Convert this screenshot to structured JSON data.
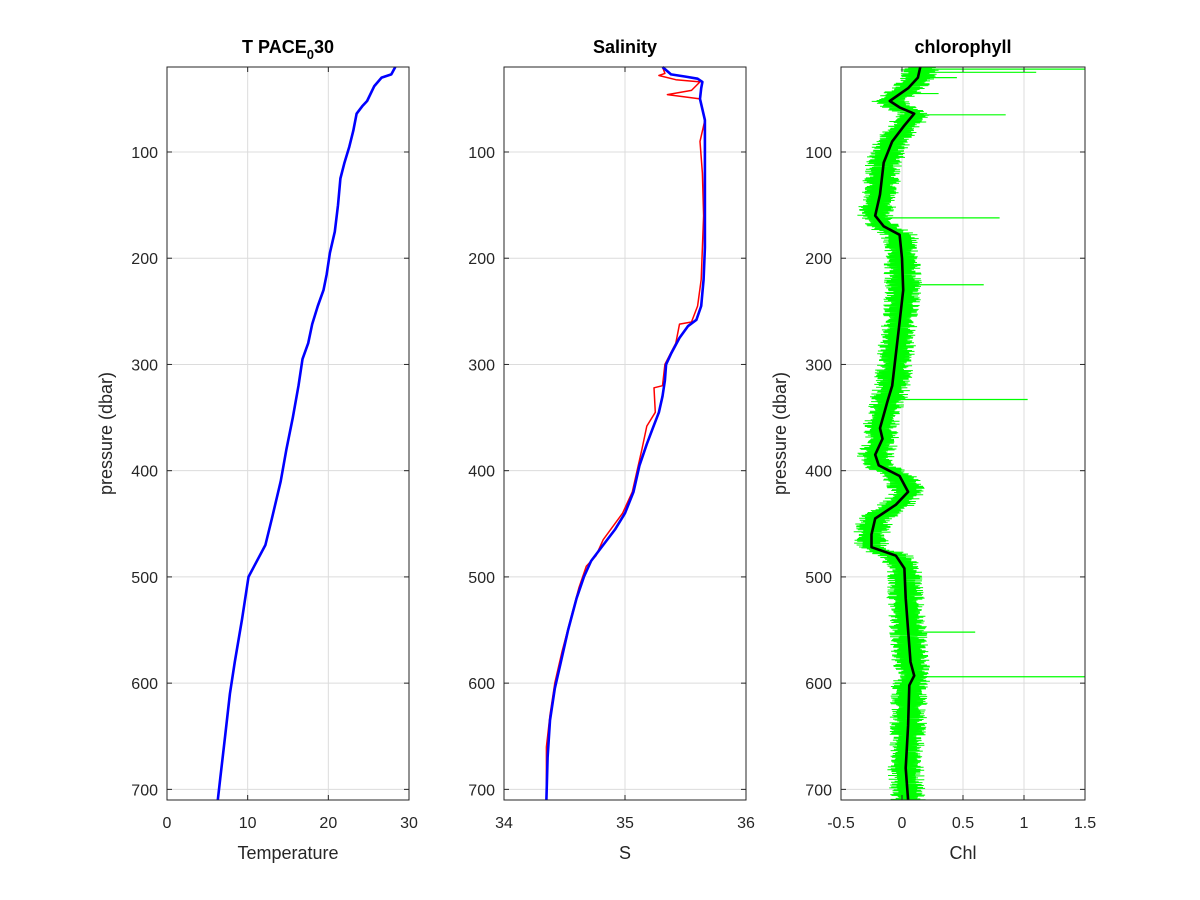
{
  "chart_data": [
    {
      "type": "line",
      "title": "T PACE",
      "title_subscript": "0",
      "title_suffix": "30",
      "xlabel": "Temperature",
      "ylabel": "pressure (dbar)",
      "xlim": [
        0,
        30
      ],
      "ylim": [
        20,
        710
      ],
      "y_reversed": true,
      "grid": true,
      "xticks": [
        0,
        10,
        20,
        30
      ],
      "yticks": [
        100,
        200,
        300,
        400,
        500,
        600,
        700
      ],
      "series": [
        {
          "color": "#0000ff",
          "points": [
            [
              28.3,
              20
            ],
            [
              27.8,
              27
            ],
            [
              26.6,
              30
            ],
            [
              25.7,
              38
            ],
            [
              24.8,
              52
            ],
            [
              24.2,
              57
            ],
            [
              23.5,
              64
            ],
            [
              23.1,
              80
            ],
            [
              22.6,
              95
            ],
            [
              22.0,
              110
            ],
            [
              21.5,
              125
            ],
            [
              21.2,
              150
            ],
            [
              20.8,
              175
            ],
            [
              20.2,
              195
            ],
            [
              19.8,
              215
            ],
            [
              19.4,
              230
            ],
            [
              18.7,
              245
            ],
            [
              18.0,
              262
            ],
            [
              17.5,
              280
            ],
            [
              16.8,
              295
            ],
            [
              16.3,
              320
            ],
            [
              15.6,
              350
            ],
            [
              14.8,
              380
            ],
            [
              14.1,
              410
            ],
            [
              13.0,
              445
            ],
            [
              12.2,
              470
            ],
            [
              10.8,
              490
            ],
            [
              10.1,
              500
            ],
            [
              9.3,
              540
            ],
            [
              8.4,
              580
            ],
            [
              7.8,
              610
            ],
            [
              7.2,
              650
            ],
            [
              6.6,
              690
            ],
            [
              6.3,
              710
            ]
          ]
        }
      ]
    },
    {
      "type": "line",
      "title": "Salinity",
      "xlabel": "S",
      "ylabel": "",
      "xlim": [
        34,
        36
      ],
      "ylim": [
        20,
        710
      ],
      "y_reversed": true,
      "grid": true,
      "xticks": [
        34,
        35,
        36
      ],
      "series": [
        {
          "color": "#ff0000",
          "points": [
            [
              35.31,
              20
            ],
            [
              35.33,
              26
            ],
            [
              35.28,
              28
            ],
            [
              35.42,
              32
            ],
            [
              35.62,
              34
            ],
            [
              35.55,
              42
            ],
            [
              35.35,
              46
            ],
            [
              35.62,
              50
            ],
            [
              35.66,
              70
            ],
            [
              35.62,
              90
            ],
            [
              35.64,
              120
            ],
            [
              35.65,
              160
            ],
            [
              35.64,
              190
            ],
            [
              35.63,
              220
            ],
            [
              35.6,
              245
            ],
            [
              35.55,
              260
            ],
            [
              35.45,
              262
            ],
            [
              35.42,
              280
            ],
            [
              35.33,
              300
            ],
            [
              35.31,
              320
            ],
            [
              35.24,
              322
            ],
            [
              35.25,
              345
            ],
            [
              35.18,
              358
            ],
            [
              35.14,
              380
            ],
            [
              35.06,
              420
            ],
            [
              34.98,
              440
            ],
            [
              34.82,
              465
            ],
            [
              34.76,
              480
            ],
            [
              34.68,
              490
            ],
            [
              34.62,
              510
            ],
            [
              34.55,
              540
            ],
            [
              34.48,
              570
            ],
            [
              34.42,
              600
            ],
            [
              34.38,
              630
            ],
            [
              34.35,
              660
            ],
            [
              34.35,
              710
            ]
          ]
        },
        {
          "color": "#0000ff",
          "points": [
            [
              35.31,
              20
            ],
            [
              35.38,
              27
            ],
            [
              35.5,
              29
            ],
            [
              35.6,
              31
            ],
            [
              35.64,
              34
            ],
            [
              35.63,
              40
            ],
            [
              35.62,
              50
            ],
            [
              35.66,
              70
            ],
            [
              35.66,
              95
            ],
            [
              35.66,
              125
            ],
            [
              35.66,
              160
            ],
            [
              35.66,
              190
            ],
            [
              35.65,
              220
            ],
            [
              35.63,
              245
            ],
            [
              35.59,
              258
            ],
            [
              35.52,
              264
            ],
            [
              35.45,
              275
            ],
            [
              35.38,
              290
            ],
            [
              35.34,
              300
            ],
            [
              35.33,
              315
            ],
            [
              35.31,
              330
            ],
            [
              35.28,
              345
            ],
            [
              35.23,
              360
            ],
            [
              35.18,
              375
            ],
            [
              35.12,
              395
            ],
            [
              35.07,
              420
            ],
            [
              35.0,
              440
            ],
            [
              34.92,
              455
            ],
            [
              34.82,
              470
            ],
            [
              34.72,
              485
            ],
            [
              34.66,
              500
            ],
            [
              34.6,
              520
            ],
            [
              34.53,
              550
            ],
            [
              34.47,
              580
            ],
            [
              34.42,
              605
            ],
            [
              34.38,
              635
            ],
            [
              34.36,
              670
            ],
            [
              34.35,
              710
            ]
          ]
        }
      ]
    },
    {
      "type": "line",
      "title": "chlorophyll",
      "xlabel": "Chl",
      "ylabel": "pressure (dbar)",
      "xlim": [
        -0.5,
        1.5
      ],
      "ylim": [
        20,
        710
      ],
      "y_reversed": true,
      "grid": true,
      "xticks": [
        -0.5,
        0,
        0.5,
        1,
        1.5
      ],
      "xtick_labels": [
        "-0.5",
        "0",
        "0.5",
        "1",
        "1.5"
      ],
      "series": [
        {
          "color": "#00ff00",
          "type": "noisy-envelope",
          "halfwidth": 0.12,
          "spikes": [
            [
              22,
              1.5
            ],
            [
              25,
              1.1
            ],
            [
              30,
              0.45
            ],
            [
              45,
              0.3
            ],
            [
              65,
              0.85
            ],
            [
              162,
              0.8
            ],
            [
              225,
              0.67
            ],
            [
              333,
              1.03
            ],
            [
              552,
              0.6
            ],
            [
              594,
              1.5
            ]
          ]
        },
        {
          "color": "#000000",
          "points": [
            [
              0.15,
              20
            ],
            [
              0.13,
              30
            ],
            [
              0.05,
              40
            ],
            [
              -0.1,
              52
            ],
            [
              -0.02,
              58
            ],
            [
              0.1,
              64
            ],
            [
              0.02,
              75
            ],
            [
              -0.08,
              90
            ],
            [
              -0.15,
              110
            ],
            [
              -0.18,
              140
            ],
            [
              -0.22,
              160
            ],
            [
              -0.15,
              170
            ],
            [
              -0.02,
              178
            ],
            [
              0.0,
              200
            ],
            [
              0.01,
              230
            ],
            [
              -0.02,
              260
            ],
            [
              -0.05,
              290
            ],
            [
              -0.08,
              320
            ],
            [
              -0.12,
              335
            ],
            [
              -0.18,
              360
            ],
            [
              -0.16,
              370
            ],
            [
              -0.22,
              385
            ],
            [
              -0.19,
              395
            ],
            [
              -0.02,
              405
            ],
            [
              0.05,
              420
            ],
            [
              -0.05,
              432
            ],
            [
              -0.22,
              445
            ],
            [
              -0.25,
              460
            ],
            [
              -0.25,
              472
            ],
            [
              -0.05,
              480
            ],
            [
              0.02,
              492
            ],
            [
              0.03,
              520
            ],
            [
              0.05,
              550
            ],
            [
              0.07,
              580
            ],
            [
              0.1,
              593
            ],
            [
              0.06,
              602
            ],
            [
              0.05,
              640
            ],
            [
              0.03,
              680
            ],
            [
              0.05,
              710
            ]
          ]
        }
      ]
    }
  ]
}
